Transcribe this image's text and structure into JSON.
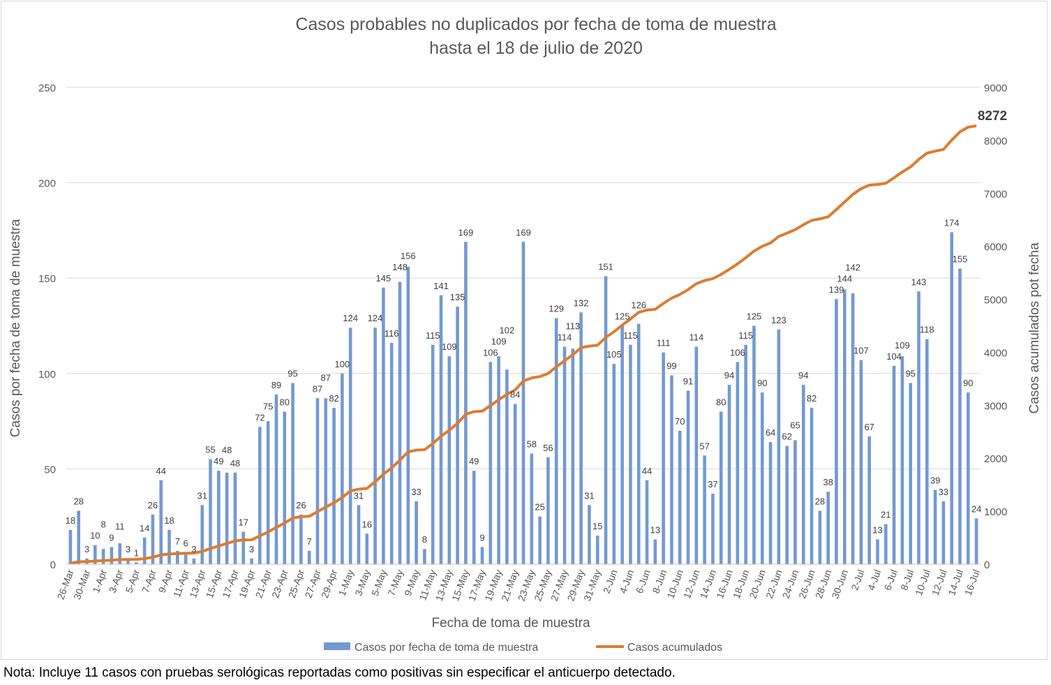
{
  "chart_data": {
    "type": "bar+line",
    "title": [
      "Casos probables no duplicados por fecha de toma de muestra",
      "hasta el 18 de julio de 2020"
    ],
    "xlabel": "Fecha de toma de muestra",
    "ylabel": "Casos por fecha de toma de muestra",
    "y2label": "Casos acumulados pot fecha",
    "ylim": [
      0,
      250
    ],
    "yticks": [
      0,
      50,
      100,
      150,
      200,
      250
    ],
    "y2lim": [
      0,
      9000
    ],
    "y2ticks": [
      0,
      1000,
      2000,
      3000,
      4000,
      5000,
      6000,
      7000,
      8000,
      9000
    ],
    "x_tick_labels": [
      "26-Mar",
      "30-Mar",
      "1-Apr",
      "3-Apr",
      "5-Apr",
      "7-Apr",
      "9-Apr",
      "11-Apr",
      "13-Apr",
      "15-Apr",
      "17-Apr",
      "19-Apr",
      "21-Apr",
      "23-Apr",
      "25-Apr",
      "27-Apr",
      "29-Apr",
      "1-May",
      "3-May",
      "5-May",
      "7-May",
      "9-May",
      "11-May",
      "13-May",
      "15-May",
      "17-May",
      "19-May",
      "21-May",
      "23-May",
      "25-May",
      "27-May",
      "29-May",
      "31-May",
      "2-Jun",
      "4-Jun",
      "6-Jun",
      "8-Jun",
      "10-Jun",
      "12-Jun",
      "14-Jun",
      "16-Jun",
      "18-Jun",
      "20-Jun",
      "22-Jun",
      "24-Jun",
      "26-Jun",
      "28-Jun",
      "30-Jun",
      "2-Jul",
      "4-Jul",
      "6-Jul",
      "8-Jul",
      "10-Jul",
      "12-Jul",
      "14-Jul",
      "16-Jul"
    ],
    "series": [
      {
        "name": "Casos por fecha de toma de muestra",
        "type": "bar",
        "color": "#7399d2",
        "values": [
          18,
          28,
          3,
          10,
          8,
          9,
          11,
          3,
          1,
          14,
          26,
          44,
          18,
          7,
          6,
          3,
          31,
          55,
          49,
          48,
          48,
          17,
          3,
          72,
          75,
          89,
          80,
          95,
          26,
          7,
          87,
          87,
          82,
          100,
          124,
          31,
          16,
          124,
          145,
          116,
          148,
          156,
          33,
          8,
          115,
          141,
          109,
          135,
          169,
          49,
          9,
          106,
          109,
          102,
          84,
          169,
          58,
          25,
          56,
          129,
          114,
          113,
          132,
          31,
          15,
          151,
          105,
          125,
          115,
          126,
          44,
          13,
          111,
          99,
          70,
          91,
          114,
          57,
          37,
          80,
          94,
          106,
          115,
          125,
          90,
          64,
          123,
          62,
          65,
          94,
          82,
          28,
          38,
          139,
          144,
          142,
          107,
          67,
          13,
          21,
          104,
          109,
          95,
          143,
          118,
          39,
          33,
          174,
          155,
          90,
          24
        ]
      },
      {
        "name": "Casos acumulados",
        "type": "line",
        "axis": "right",
        "color": "#dd7c31",
        "cumulative_of": "Casos por fecha de toma de muestra",
        "final_label": "8272",
        "final_value": 8272
      }
    ],
    "legend": "bottom"
  },
  "note": "Nota: Incluye 11 casos con pruebas serológicas reportadas como positivas sin especificar el anticuerpo detectado."
}
